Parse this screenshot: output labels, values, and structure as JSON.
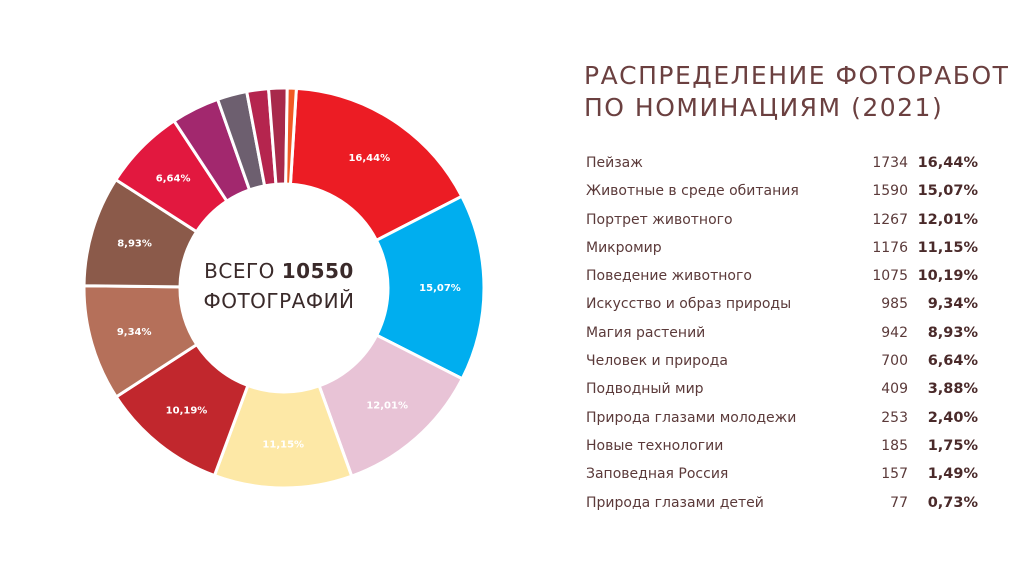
{
  "title_line1": "РАСПРЕДЕЛЕНИЕ ФОТОРАБОТ",
  "title_line2": "ПО НОМИНАЦИЯМ (2021)",
  "center": {
    "prefix": "ВСЕГО",
    "total": "10550",
    "suffix": "ФОТОГРАФИЙ"
  },
  "chart_data": {
    "type": "pie",
    "total": 10550,
    "categories": [
      "Пейзаж",
      "Животные в среде обитания",
      "Портрет животного",
      "Микромир",
      "Поведение животного",
      "Искусство и образ природы",
      "Магия растений",
      "Человек и природа",
      "Подводный мир",
      "Природа глазами молодежи",
      "Новые технологии",
      "Заповедная Россия",
      "Природа глазами детей"
    ],
    "values": [
      1734,
      1590,
      1267,
      1176,
      1075,
      985,
      942,
      700,
      409,
      253,
      185,
      157,
      77
    ],
    "percent_labels": [
      "16,44%",
      "15,07%",
      "12,01%",
      "11,15%",
      "10,19%",
      "9,34%",
      "8,93%",
      "6,64%",
      "3,88%",
      "2,40%",
      "1,75%",
      "1,49%",
      "0,73%"
    ],
    "colors": [
      "#ec1c24",
      "#00aeef",
      "#e8c3d6",
      "#fde8a6",
      "#c1272d",
      "#b5705a",
      "#8b5a4a",
      "#e2183f",
      "#a2286e",
      "#6d5f6f",
      "#b5254e",
      "#a82a4b",
      "#f15a24"
    ],
    "label_colors": [
      "#ffffff",
      "#ffffff",
      "#ffffff",
      "#ffffff",
      "#ffffff",
      "#ffffff",
      "#ffffff",
      "#ffffff",
      "",
      "",
      "",
      "",
      ""
    ]
  }
}
